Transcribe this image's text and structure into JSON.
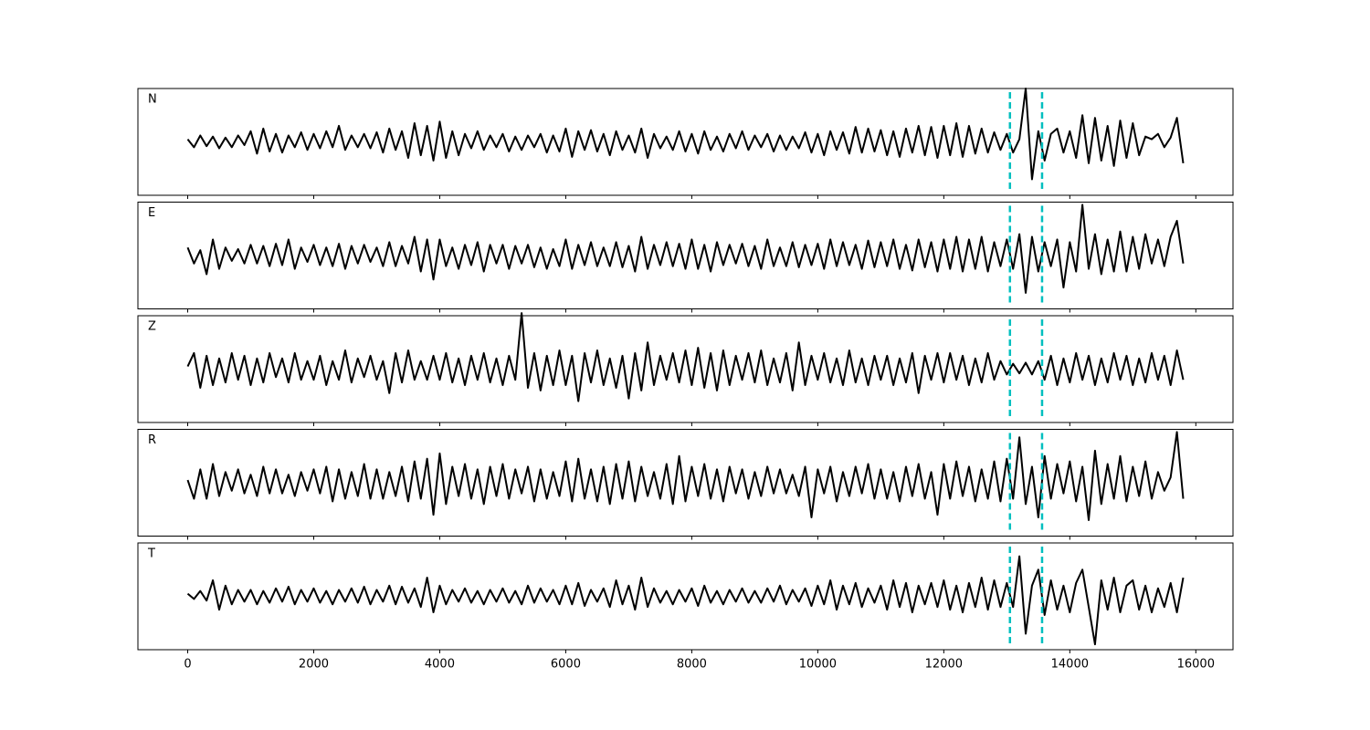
{
  "chart_data": {
    "type": "line",
    "subplots": true,
    "xlim": [
      -790,
      16590
    ],
    "xticks": [
      0,
      2000,
      4000,
      6000,
      8000,
      10000,
      12000,
      14000,
      16000
    ],
    "ylim": [
      -1,
      1
    ],
    "vlines": {
      "x": [
        13050,
        13560
      ],
      "color": "#00bfbf",
      "style": "dashed"
    },
    "x": [
      0,
      100,
      200,
      300,
      400,
      500,
      600,
      700,
      800,
      900,
      1000,
      1100,
      1200,
      1300,
      1400,
      1500,
      1600,
      1700,
      1800,
      1900,
      2000,
      2100,
      2200,
      2300,
      2400,
      2500,
      2600,
      2700,
      2800,
      2900,
      3000,
      3100,
      3200,
      3300,
      3400,
      3500,
      3600,
      3700,
      3800,
      3900,
      4000,
      4100,
      4200,
      4300,
      4400,
      4500,
      4600,
      4700,
      4800,
      4900,
      5000,
      5100,
      5200,
      5300,
      5400,
      5500,
      5600,
      5700,
      5800,
      5900,
      6000,
      6100,
      6200,
      6300,
      6400,
      6500,
      6600,
      6700,
      6800,
      6900,
      7000,
      7100,
      7200,
      7300,
      7400,
      7500,
      7600,
      7700,
      7800,
      7900,
      8000,
      8100,
      8200,
      8300,
      8400,
      8500,
      8600,
      8700,
      8800,
      8900,
      9000,
      9100,
      9200,
      9300,
      9400,
      9500,
      9600,
      9700,
      9800,
      9900,
      10000,
      10100,
      10200,
      10300,
      10400,
      10500,
      10600,
      10700,
      10800,
      10900,
      11000,
      11100,
      11200,
      11300,
      11400,
      11500,
      11600,
      11700,
      11800,
      11900,
      12000,
      12100,
      12200,
      12300,
      12400,
      12500,
      12600,
      12700,
      12800,
      12900,
      13000,
      13100,
      13200,
      13300,
      13400,
      13500,
      13600,
      13700,
      13800,
      13900,
      14000,
      14100,
      14200,
      14300,
      14400,
      14500,
      14600,
      14700,
      14800,
      14900,
      15000,
      15100,
      15200,
      15300,
      15400,
      15500,
      15600,
      15700,
      15800
    ],
    "series": [
      {
        "name": "N",
        "color": "#000000",
        "values": [
          0.05,
          -0.1,
          0.12,
          -0.08,
          0.1,
          -0.12,
          0.08,
          -0.1,
          0.12,
          -0.06,
          0.2,
          -0.22,
          0.25,
          -0.18,
          0.15,
          -0.2,
          0.12,
          -0.1,
          0.18,
          -0.15,
          0.15,
          -0.12,
          0.2,
          -0.1,
          0.3,
          -0.15,
          0.12,
          -0.1,
          0.15,
          -0.12,
          0.18,
          -0.2,
          0.25,
          -0.15,
          0.2,
          -0.3,
          0.35,
          -0.25,
          0.3,
          -0.35,
          0.38,
          -0.3,
          0.2,
          -0.25,
          0.15,
          -0.12,
          0.2,
          -0.15,
          0.12,
          -0.1,
          0.15,
          -0.18,
          0.1,
          -0.15,
          0.12,
          -0.1,
          0.15,
          -0.2,
          0.12,
          -0.18,
          0.25,
          -0.28,
          0.2,
          -0.15,
          0.22,
          -0.18,
          0.15,
          -0.25,
          0.2,
          -0.15,
          0.12,
          -0.2,
          0.25,
          -0.3,
          0.15,
          -0.12,
          0.1,
          -0.15,
          0.2,
          -0.18,
          0.15,
          -0.22,
          0.2,
          -0.15,
          0.1,
          -0.18,
          0.15,
          -0.12,
          0.2,
          -0.15,
          0.12,
          -0.1,
          0.15,
          -0.18,
          0.12,
          -0.15,
          0.1,
          -0.12,
          0.18,
          -0.2,
          0.15,
          -0.25,
          0.2,
          -0.15,
          0.18,
          -0.22,
          0.28,
          -0.2,
          0.25,
          -0.18,
          0.22,
          -0.25,
          0.2,
          -0.28,
          0.25,
          -0.2,
          0.3,
          -0.25,
          0.28,
          -0.3,
          0.3,
          -0.25,
          0.35,
          -0.28,
          0.3,
          -0.22,
          0.25,
          -0.2,
          0.18,
          -0.15,
          0.15,
          -0.2,
          0.05,
          1.0,
          -0.7,
          0.2,
          -0.35,
          0.15,
          0.25,
          -0.2,
          0.2,
          -0.3,
          0.5,
          -0.4,
          0.45,
          -0.35,
          0.3,
          -0.45,
          0.4,
          -0.3,
          0.35,
          -0.25,
          0.1,
          0.05,
          0.15,
          -0.1,
          0.08,
          0.45,
          -0.4
        ]
      },
      {
        "name": "E",
        "color": "#000000",
        "values": [
          0.15,
          -0.15,
          0.1,
          -0.35,
          0.3,
          -0.25,
          0.15,
          -0.1,
          0.12,
          -0.15,
          0.2,
          -0.15,
          0.18,
          -0.2,
          0.22,
          -0.18,
          0.3,
          -0.25,
          0.15,
          -0.12,
          0.2,
          -0.18,
          0.15,
          -0.2,
          0.22,
          -0.25,
          0.18,
          -0.15,
          0.2,
          -0.12,
          0.15,
          -0.2,
          0.25,
          -0.2,
          0.18,
          -0.15,
          0.35,
          -0.3,
          0.3,
          -0.45,
          0.3,
          -0.2,
          0.15,
          -0.25,
          0.2,
          -0.18,
          0.25,
          -0.3,
          0.2,
          -0.15,
          0.2,
          -0.25,
          0.18,
          -0.15,
          0.2,
          -0.22,
          0.15,
          -0.25,
          0.12,
          -0.2,
          0.3,
          -0.25,
          0.2,
          -0.18,
          0.25,
          -0.2,
          0.15,
          -0.2,
          0.25,
          -0.22,
          0.18,
          -0.3,
          0.35,
          -0.25,
          0.2,
          -0.18,
          0.25,
          -0.2,
          0.22,
          -0.25,
          0.3,
          -0.25,
          0.2,
          -0.3,
          0.25,
          -0.18,
          0.2,
          -0.15,
          0.22,
          -0.2,
          0.18,
          -0.25,
          0.3,
          -0.2,
          0.15,
          -0.2,
          0.25,
          -0.22,
          0.2,
          -0.18,
          0.22,
          -0.25,
          0.3,
          -0.2,
          0.25,
          -0.18,
          0.2,
          -0.25,
          0.28,
          -0.22,
          0.25,
          -0.2,
          0.3,
          -0.25,
          0.2,
          -0.28,
          0.3,
          -0.22,
          0.25,
          -0.3,
          0.3,
          -0.25,
          0.35,
          -0.3,
          0.3,
          -0.25,
          0.35,
          -0.3,
          0.25,
          -0.2,
          0.3,
          -0.25,
          0.4,
          -0.7,
          0.35,
          -0.3,
          0.25,
          -0.2,
          0.3,
          -0.6,
          0.25,
          -0.3,
          0.95,
          -0.25,
          0.4,
          -0.35,
          0.3,
          -0.3,
          0.45,
          -0.3,
          0.35,
          -0.25,
          0.4,
          -0.15,
          0.3,
          -0.2,
          0.35,
          0.65,
          -0.15
        ]
      },
      {
        "name": "Z",
        "color": "#000000",
        "values": [
          0.05,
          0.3,
          -0.35,
          0.25,
          -0.3,
          0.2,
          -0.25,
          0.3,
          -0.2,
          0.25,
          -0.3,
          0.2,
          -0.25,
          0.3,
          -0.15,
          0.2,
          -0.25,
          0.3,
          -0.2,
          0.15,
          -0.2,
          0.25,
          -0.3,
          0.15,
          -0.2,
          0.35,
          -0.25,
          0.2,
          -0.15,
          0.25,
          -0.2,
          0.15,
          -0.45,
          0.3,
          -0.25,
          0.35,
          -0.2,
          0.15,
          -0.2,
          0.25,
          -0.2,
          0.3,
          -0.25,
          0.2,
          -0.3,
          0.25,
          -0.2,
          0.3,
          -0.25,
          0.2,
          -0.3,
          0.25,
          -0.2,
          1.05,
          -0.35,
          0.3,
          -0.4,
          0.25,
          -0.3,
          0.35,
          -0.3,
          0.25,
          -0.6,
          0.3,
          -0.25,
          0.35,
          -0.3,
          0.2,
          -0.35,
          0.25,
          -0.55,
          0.3,
          -0.4,
          0.5,
          -0.3,
          0.25,
          -0.2,
          0.3,
          -0.25,
          0.35,
          -0.3,
          0.4,
          -0.35,
          0.3,
          -0.4,
          0.35,
          -0.3,
          0.25,
          -0.2,
          0.3,
          -0.25,
          0.35,
          -0.3,
          0.2,
          -0.25,
          0.3,
          -0.4,
          0.5,
          -0.3,
          0.25,
          -0.2,
          0.3,
          -0.25,
          0.2,
          -0.3,
          0.35,
          -0.25,
          0.2,
          -0.3,
          0.25,
          -0.2,
          0.25,
          -0.3,
          0.2,
          -0.25,
          0.3,
          -0.45,
          0.25,
          -0.2,
          0.3,
          -0.25,
          0.3,
          -0.2,
          0.25,
          -0.3,
          0.2,
          -0.25,
          0.3,
          -0.2,
          0.15,
          -0.1,
          0.1,
          -0.08,
          0.12,
          -0.1,
          0.15,
          -0.2,
          0.25,
          -0.3,
          0.2,
          -0.25,
          0.3,
          -0.2,
          0.25,
          -0.3,
          0.2,
          -0.25,
          0.3,
          -0.2,
          0.25,
          -0.3,
          0.2,
          -0.25,
          0.3,
          -0.2,
          0.25,
          -0.3,
          0.35,
          -0.2
        ]
      },
      {
        "name": "R",
        "color": "#000000",
        "values": [
          0.05,
          -0.3,
          0.25,
          -0.3,
          0.35,
          -0.25,
          0.2,
          -0.15,
          0.25,
          -0.2,
          0.15,
          -0.25,
          0.3,
          -0.2,
          0.25,
          -0.2,
          0.15,
          -0.25,
          0.2,
          -0.15,
          0.25,
          -0.2,
          0.3,
          -0.35,
          0.25,
          -0.3,
          0.2,
          -0.25,
          0.35,
          -0.3,
          0.25,
          -0.3,
          0.2,
          -0.25,
          0.3,
          -0.35,
          0.4,
          -0.3,
          0.45,
          -0.6,
          0.55,
          -0.4,
          0.3,
          -0.25,
          0.35,
          -0.3,
          0.25,
          -0.4,
          0.3,
          -0.25,
          0.35,
          -0.3,
          0.25,
          -0.2,
          0.3,
          -0.35,
          0.25,
          -0.3,
          0.2,
          -0.25,
          0.4,
          -0.35,
          0.45,
          -0.3,
          0.25,
          -0.35,
          0.3,
          -0.4,
          0.35,
          -0.3,
          0.4,
          -0.35,
          0.3,
          -0.25,
          0.2,
          -0.3,
          0.35,
          -0.4,
          0.5,
          -0.35,
          0.3,
          -0.25,
          0.35,
          -0.3,
          0.25,
          -0.35,
          0.3,
          -0.2,
          0.25,
          -0.3,
          0.2,
          -0.25,
          0.3,
          -0.2,
          0.25,
          -0.2,
          0.15,
          -0.25,
          0.3,
          -0.65,
          0.25,
          -0.2,
          0.3,
          -0.35,
          0.2,
          -0.25,
          0.3,
          -0.2,
          0.35,
          -0.3,
          0.25,
          -0.3,
          0.2,
          -0.35,
          0.3,
          -0.25,
          0.35,
          -0.3,
          0.2,
          -0.6,
          0.35,
          -0.3,
          0.4,
          -0.25,
          0.3,
          -0.35,
          0.25,
          -0.3,
          0.4,
          -0.35,
          0.45,
          -0.3,
          0.85,
          -0.4,
          0.3,
          -0.65,
          0.5,
          -0.3,
          0.35,
          -0.2,
          0.4,
          -0.35,
          0.3,
          -0.7,
          0.6,
          -0.4,
          0.35,
          -0.3,
          0.5,
          -0.35,
          0.3,
          -0.25,
          0.4,
          -0.3,
          0.2,
          -0.15,
          0.1,
          0.95,
          -0.3
        ]
      },
      {
        "name": "T",
        "color": "#000000",
        "values": [
          0.05,
          -0.05,
          0.1,
          -0.08,
          0.3,
          -0.25,
          0.2,
          -0.15,
          0.12,
          -0.1,
          0.12,
          -0.15,
          0.1,
          -0.12,
          0.15,
          -0.1,
          0.18,
          -0.15,
          0.12,
          -0.1,
          0.15,
          -0.12,
          0.1,
          -0.15,
          0.12,
          -0.1,
          0.15,
          -0.12,
          0.18,
          -0.15,
          0.12,
          -0.1,
          0.2,
          -0.15,
          0.18,
          -0.12,
          0.15,
          -0.2,
          0.35,
          -0.3,
          0.2,
          -0.15,
          0.12,
          -0.1,
          0.15,
          -0.12,
          0.1,
          -0.15,
          0.12,
          -0.1,
          0.15,
          -0.12,
          0.1,
          -0.15,
          0.2,
          -0.12,
          0.15,
          -0.1,
          0.12,
          -0.15,
          0.2,
          -0.15,
          0.25,
          -0.18,
          0.12,
          -0.1,
          0.15,
          -0.2,
          0.3,
          -0.15,
          0.2,
          -0.25,
          0.35,
          -0.2,
          0.15,
          -0.12,
          0.1,
          -0.15,
          0.12,
          -0.1,
          0.15,
          -0.18,
          0.2,
          -0.12,
          0.1,
          -0.15,
          0.12,
          -0.1,
          0.15,
          -0.12,
          0.1,
          -0.12,
          0.15,
          -0.1,
          0.2,
          -0.15,
          0.12,
          -0.1,
          0.15,
          -0.18,
          0.2,
          -0.15,
          0.3,
          -0.25,
          0.2,
          -0.15,
          0.25,
          -0.2,
          0.15,
          -0.12,
          0.2,
          -0.25,
          0.3,
          -0.2,
          0.25,
          -0.3,
          0.2,
          -0.15,
          0.25,
          -0.2,
          0.3,
          -0.25,
          0.2,
          -0.3,
          0.25,
          -0.2,
          0.35,
          -0.25,
          0.3,
          -0.2,
          0.25,
          -0.2,
          0.75,
          -0.7,
          0.2,
          0.5,
          -0.35,
          0.3,
          -0.25,
          0.2,
          -0.3,
          0.25,
          0.5,
          -0.2,
          -0.9,
          0.3,
          -0.25,
          0.35,
          -0.3,
          0.2,
          0.3,
          -0.25,
          0.2,
          -0.3,
          0.15,
          -0.2,
          0.25,
          -0.3,
          0.35
        ]
      }
    ]
  }
}
